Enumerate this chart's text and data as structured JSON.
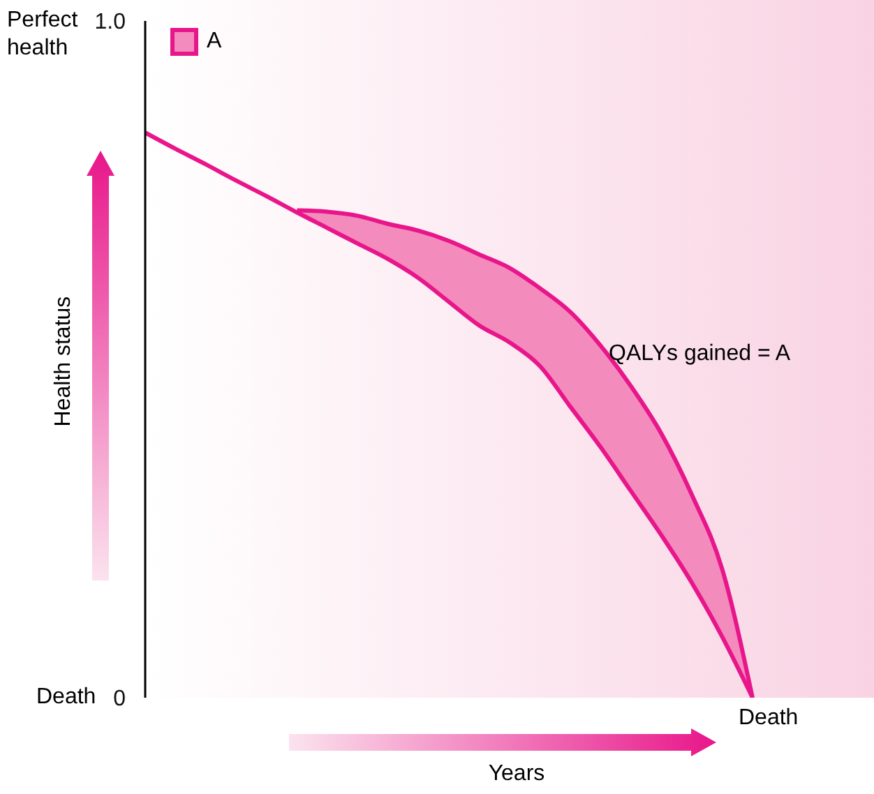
{
  "chart_data": {
    "type": "line",
    "xlabel": "Years",
    "ylabel": "Health status",
    "categories": [
      null,
      null,
      null,
      null,
      null,
      null,
      null,
      null,
      null,
      null,
      null,
      null,
      null,
      null,
      null,
      null,
      null,
      null,
      null,
      null,
      null,
      null,
      null,
      null,
      null
    ],
    "series": [
      {
        "color": "#e8168a",
        "values": [
          0.835,
          0.811,
          0.788,
          0.764,
          0.741,
          0.717,
          0.694,
          0.671,
          0.648,
          0.62,
          0.585,
          0.55,
          0.525,
          0.49,
          0.43,
          0.37,
          0.305,
          0.24,
          0.17,
          0.09,
          0,
          null,
          null,
          null,
          null
        ]
      },
      {
        "name": "A",
        "type": "area",
        "color": "#f38bbd",
        "values": [
          null,
          null,
          null,
          null,
          null,
          0.72,
          0.718,
          0.712,
          0.7,
          0.69,
          0.675,
          0.655,
          0.635,
          0.605,
          0.57,
          0.52,
          0.46,
          0.39,
          0.3,
          0.19,
          0,
          null,
          null,
          null,
          null
        ]
      }
    ],
    "ylim": [
      0,
      1
    ],
    "yticks": [
      {
        "value": 0,
        "label": "0"
      },
      {
        "value": 1,
        "label": "1.0"
      }
    ],
    "legend": "top left",
    "marker": "none",
    "line_style": "solid",
    "annotations": [
      "Perfect health",
      "Death",
      "Death",
      "QALYs gained = A"
    ]
  }
}
